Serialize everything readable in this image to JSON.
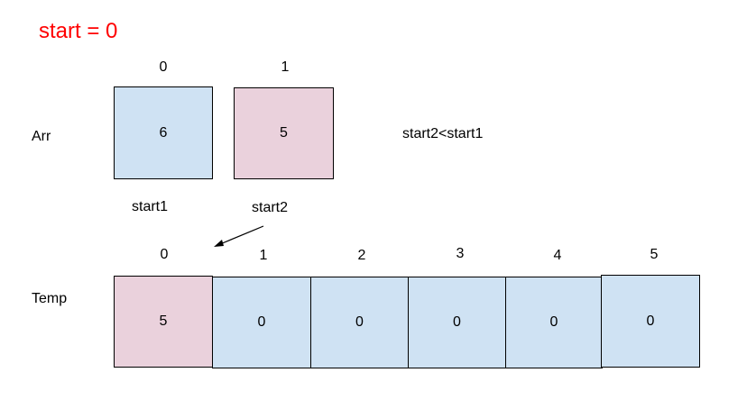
{
  "title": "start = 0",
  "arr": {
    "label": "Arr",
    "indices": [
      "0",
      "1"
    ],
    "values": [
      "6",
      "5"
    ],
    "colors": [
      "#cfe2f3",
      "#ead1dc"
    ],
    "pointers": [
      "start1",
      "start2"
    ]
  },
  "condition": "start2<start1",
  "temp": {
    "label": "Temp",
    "indices": [
      "0",
      "1",
      "2",
      "3",
      "4",
      "5"
    ],
    "values": [
      "5",
      "0",
      "0",
      "0",
      "0",
      "0"
    ],
    "colors": [
      "#ead1dc",
      "#cfe2f3",
      "#cfe2f3",
      "#cfe2f3",
      "#cfe2f3",
      "#cfe2f3"
    ]
  }
}
